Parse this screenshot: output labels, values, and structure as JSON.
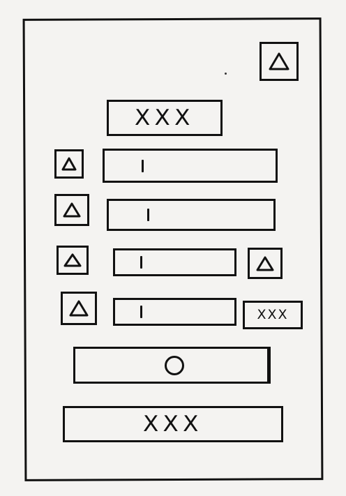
{
  "screen": {
    "top_right_icon": "triangle-icon",
    "title_label": "XXX",
    "rows": [
      {
        "icon": "triangle-icon",
        "field_text": "I"
      },
      {
        "icon": "triangle-icon",
        "field_text": "I"
      },
      {
        "icon": "triangle-icon",
        "field_text": "I",
        "trailing_icon": "triangle-icon"
      },
      {
        "icon": "triangle-icon",
        "field_text": "I",
        "trailing_label": "XXX"
      }
    ],
    "slider_icon": "circle-icon",
    "submit_label": "XXX"
  }
}
